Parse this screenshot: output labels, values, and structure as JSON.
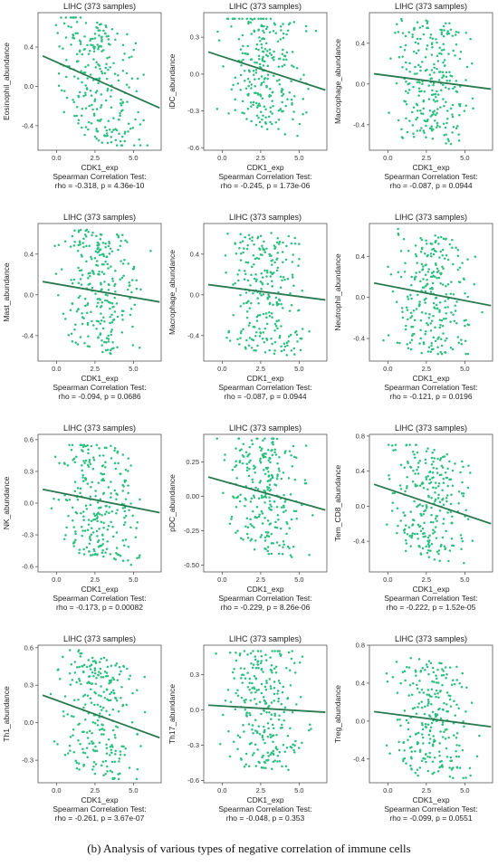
{
  "caption": "(b) Analysis of various types of negative correlation of immune cells",
  "colors": {
    "point": "#2bbf80",
    "line": "#2a7a50",
    "frame": "#555555"
  },
  "chart_data": [
    {
      "type": "scatter",
      "title": "LIHC (373 samples)",
      "xlabel": "CDK1_exp",
      "ylabel": "Eosinophil_abundance",
      "xticks": [
        "0.0",
        "2.5",
        "5.0"
      ],
      "xtick_values": [
        0,
        2.5,
        5
      ],
      "yticks": [
        "-0.4",
        "0.0",
        "0.4"
      ],
      "ytick_values": [
        -0.4,
        0,
        0.4
      ],
      "xlim": [
        -1.2,
        6.8
      ],
      "ylim": [
        -0.65,
        0.75
      ],
      "fit": {
        "x": [
          -0.9,
          6.7
        ],
        "y": [
          0.31,
          -0.22
        ]
      },
      "stat_title": "Spearman Correlation Test:",
      "stat": "rho = -0.318, p = 4.36e-10",
      "y_range": [
        -0.6,
        0.7
      ]
    },
    {
      "type": "scatter",
      "title": "LIHC (373 samples)",
      "xlabel": "CDK1_exp",
      "ylabel": "iDC_abundance",
      "xticks": [
        "0.0",
        "2.5",
        "5.0"
      ],
      "xtick_values": [
        0,
        2.5,
        5
      ],
      "yticks": [
        "-0.6",
        "-0.3",
        "0.0",
        "0.3"
      ],
      "ytick_values": [
        -0.6,
        -0.3,
        0,
        0.3
      ],
      "xlim": [
        -1.2,
        6.8
      ],
      "ylim": [
        -0.62,
        0.5
      ],
      "fit": {
        "x": [
          -0.9,
          6.7
        ],
        "y": [
          0.18,
          -0.13
        ]
      },
      "stat_title": "Spearman Correlation Test:",
      "stat": "rho = -0.245, p = 1.73e-06",
      "y_range": [
        -0.55,
        0.45
      ]
    },
    {
      "type": "scatter",
      "title": "LIHC (373 samples)",
      "xlabel": "CDK1_exp",
      "ylabel": "Macrophage_abundance",
      "xticks": [
        "0.0",
        "2.5",
        "5.0"
      ],
      "xtick_values": [
        0,
        2.5,
        5
      ],
      "yticks": [
        "-0.4",
        "0.0",
        "0.4"
      ],
      "ytick_values": [
        -0.4,
        0,
        0.4
      ],
      "xlim": [
        -1.2,
        6.8
      ],
      "ylim": [
        -0.65,
        0.7
      ],
      "fit": {
        "x": [
          -0.9,
          6.7
        ],
        "y": [
          0.1,
          -0.05
        ]
      },
      "stat_title": "Spearman Correlation Test:",
      "stat": "rho = -0.087, p = 0.0944",
      "y_range": [
        -0.6,
        0.65
      ]
    },
    {
      "type": "scatter",
      "title": "LIHC (373 samples)",
      "xlabel": "CDK1_exp",
      "ylabel": "Mast_abundance",
      "xticks": [
        "0.0",
        "2.5",
        "5.0"
      ],
      "xtick_values": [
        0,
        2.5,
        5
      ],
      "yticks": [
        "-0.4",
        "0.0",
        "0.4"
      ],
      "ytick_values": [
        -0.4,
        0,
        0.4
      ],
      "xlim": [
        -1.2,
        6.8
      ],
      "ylim": [
        -0.65,
        0.7
      ],
      "fit": {
        "x": [
          -0.9,
          6.7
        ],
        "y": [
          0.13,
          -0.07
        ]
      },
      "stat_title": "Spearman Correlation Test:",
      "stat": "rho = -0.094, p = 0.0686",
      "y_range": [
        -0.6,
        0.65
      ]
    },
    {
      "type": "scatter",
      "title": "LIHC (373 samples)",
      "xlabel": "CDK1_exp",
      "ylabel": "Macrophage_abundance",
      "xticks": [
        "0.0",
        "2.5",
        "5.0"
      ],
      "xtick_values": [
        0,
        2.5,
        5
      ],
      "yticks": [
        "-0.4",
        "0.0",
        "0.4"
      ],
      "ytick_values": [
        -0.4,
        0,
        0.4
      ],
      "xlim": [
        -1.2,
        6.8
      ],
      "ylim": [
        -0.65,
        0.7
      ],
      "fit": {
        "x": [
          -0.9,
          6.7
        ],
        "y": [
          0.1,
          -0.05
        ]
      },
      "stat_title": "Spearman Correlation Test:",
      "stat": "rho = -0.087, p = 0.0944",
      "y_range": [
        -0.6,
        0.65
      ]
    },
    {
      "type": "scatter",
      "title": "LIHC (373 samples)",
      "xlabel": "CDK1_exp",
      "ylabel": "Neutrophil_abundance",
      "xticks": [
        "0.0",
        "2.5",
        "5.0"
      ],
      "xtick_values": [
        0,
        2.5,
        5
      ],
      "yticks": [
        "-0.4",
        "0.0",
        "0.4"
      ],
      "ytick_values": [
        -0.4,
        0,
        0.4
      ],
      "xlim": [
        -1.2,
        6.8
      ],
      "ylim": [
        -0.62,
        0.72
      ],
      "fit": {
        "x": [
          -0.9,
          6.7
        ],
        "y": [
          0.14,
          -0.08
        ]
      },
      "stat_title": "Spearman Correlation Test:",
      "stat": "rho = -0.121, p = 0.0196",
      "y_range": [
        -0.55,
        0.7
      ]
    },
    {
      "type": "scatter",
      "title": "LIHC (373 samples)",
      "xlabel": "CDK1_exp",
      "ylabel": "NK_abundance",
      "xticks": [
        "0.0",
        "2.5",
        "5.0"
      ],
      "xtick_values": [
        0,
        2.5,
        5
      ],
      "yticks": [
        "-0.6",
        "-0.3",
        "0.0",
        "0.3",
        "0.6"
      ],
      "ytick_values": [
        -0.6,
        -0.3,
        0,
        0.3,
        0.6
      ],
      "xlim": [
        -1.2,
        6.8
      ],
      "ylim": [
        -0.65,
        0.65
      ],
      "fit": {
        "x": [
          -0.9,
          6.7
        ],
        "y": [
          0.13,
          -0.09
        ]
      },
      "stat_title": "Spearman Correlation Test:",
      "stat": "rho = -0.173, p = 0.00082",
      "y_range": [
        -0.6,
        0.55
      ]
    },
    {
      "type": "scatter",
      "title": "LIHC (373 samples)",
      "xlabel": "CDK1_exp",
      "ylabel": "pDC_abundance",
      "xticks": [
        "0.0",
        "2.5",
        "5.0"
      ],
      "xtick_values": [
        0,
        2.5,
        5
      ],
      "yticks": [
        "-0.50",
        "-0.25",
        "0.00",
        "0.25"
      ],
      "ytick_values": [
        -0.5,
        -0.25,
        0,
        0.25
      ],
      "xlim": [
        -1.2,
        6.8
      ],
      "ylim": [
        -0.55,
        0.45
      ],
      "fit": {
        "x": [
          -0.9,
          6.7
        ],
        "y": [
          0.14,
          -0.1
        ]
      },
      "stat_title": "Spearman Correlation Test:",
      "stat": "rho = -0.229, p = 8.26e-06",
      "y_range": [
        -0.5,
        0.42
      ]
    },
    {
      "type": "scatter",
      "title": "LIHC (373 samples)",
      "xlabel": "CDK1_exp",
      "ylabel": "Tem_CD8_abundance",
      "xticks": [
        "0.0",
        "2.5",
        "5.0"
      ],
      "xtick_values": [
        0,
        2.5,
        5
      ],
      "yticks": [
        "-0.4",
        "0.0",
        "0.4",
        "0.8"
      ],
      "ytick_values": [
        -0.4,
        0,
        0.4,
        0.8
      ],
      "xlim": [
        -1.2,
        6.8
      ],
      "ylim": [
        -0.75,
        0.82
      ],
      "fit": {
        "x": [
          -0.9,
          6.7
        ],
        "y": [
          0.25,
          -0.2
        ]
      },
      "stat_title": "Spearman Correlation Test:",
      "stat": "rho = -0.222, p = 1.52e-05",
      "y_range": [
        -0.65,
        0.7
      ]
    },
    {
      "type": "scatter",
      "title": "LIHC (373 samples)",
      "xlabel": "CDK1_exp",
      "ylabel": "Th1_abundance",
      "xticks": [
        "0.0",
        "2.5",
        "5.0"
      ],
      "xtick_values": [
        0,
        2.5,
        5
      ],
      "yticks": [
        "-0.3",
        "0.0",
        "0.3",
        "0.6"
      ],
      "ytick_values": [
        -0.3,
        0,
        0.3,
        0.6
      ],
      "xlim": [
        -1.2,
        6.8
      ],
      "ylim": [
        -0.48,
        0.62
      ],
      "fit": {
        "x": [
          -0.9,
          6.7
        ],
        "y": [
          0.22,
          -0.12
        ]
      },
      "stat_title": "Spearman Correlation Test:",
      "stat": "rho = -0.261, p = 3.67e-07",
      "y_range": [
        -0.45,
        0.58
      ]
    },
    {
      "type": "scatter",
      "title": "LIHC (373 samples)",
      "xlabel": "CDK1_exp",
      "ylabel": "Th17_abundance",
      "xticks": [
        "0.0",
        "2.5",
        "5.0"
      ],
      "xtick_values": [
        0,
        2.5,
        5
      ],
      "yticks": [
        "-0.6",
        "-0.3",
        "0.0",
        "0.3"
      ],
      "ytick_values": [
        -0.6,
        -0.3,
        0,
        0.3
      ],
      "xlim": [
        -1.2,
        6.8
      ],
      "ylim": [
        -0.62,
        0.55
      ],
      "fit": {
        "x": [
          -0.9,
          6.7
        ],
        "y": [
          0.04,
          -0.02
        ]
      },
      "stat_title": "Spearman Correlation Test:",
      "stat": "rho = -0.048, p = 0.353",
      "y_range": [
        -0.58,
        0.5
      ]
    },
    {
      "type": "scatter",
      "title": "LIHC (373 samples)",
      "xlabel": "CDK1_exp",
      "ylabel": "Treg_abundance",
      "xticks": [
        "0.0",
        "2.5",
        "5.0"
      ],
      "xtick_values": [
        0,
        2.5,
        5
      ],
      "yticks": [
        "-0.4",
        "0.0",
        "0.4",
        "0.8"
      ],
      "ytick_values": [
        -0.4,
        0,
        0.4,
        0.8
      ],
      "xlim": [
        -1.2,
        6.8
      ],
      "ylim": [
        -0.65,
        0.8
      ],
      "fit": {
        "x": [
          -0.9,
          6.7
        ],
        "y": [
          0.1,
          -0.06
        ]
      },
      "stat_title": "Spearman Correlation Test:",
      "stat": "rho = -0.099, p = 0.0551",
      "y_range": [
        -0.6,
        0.7
      ]
    }
  ]
}
